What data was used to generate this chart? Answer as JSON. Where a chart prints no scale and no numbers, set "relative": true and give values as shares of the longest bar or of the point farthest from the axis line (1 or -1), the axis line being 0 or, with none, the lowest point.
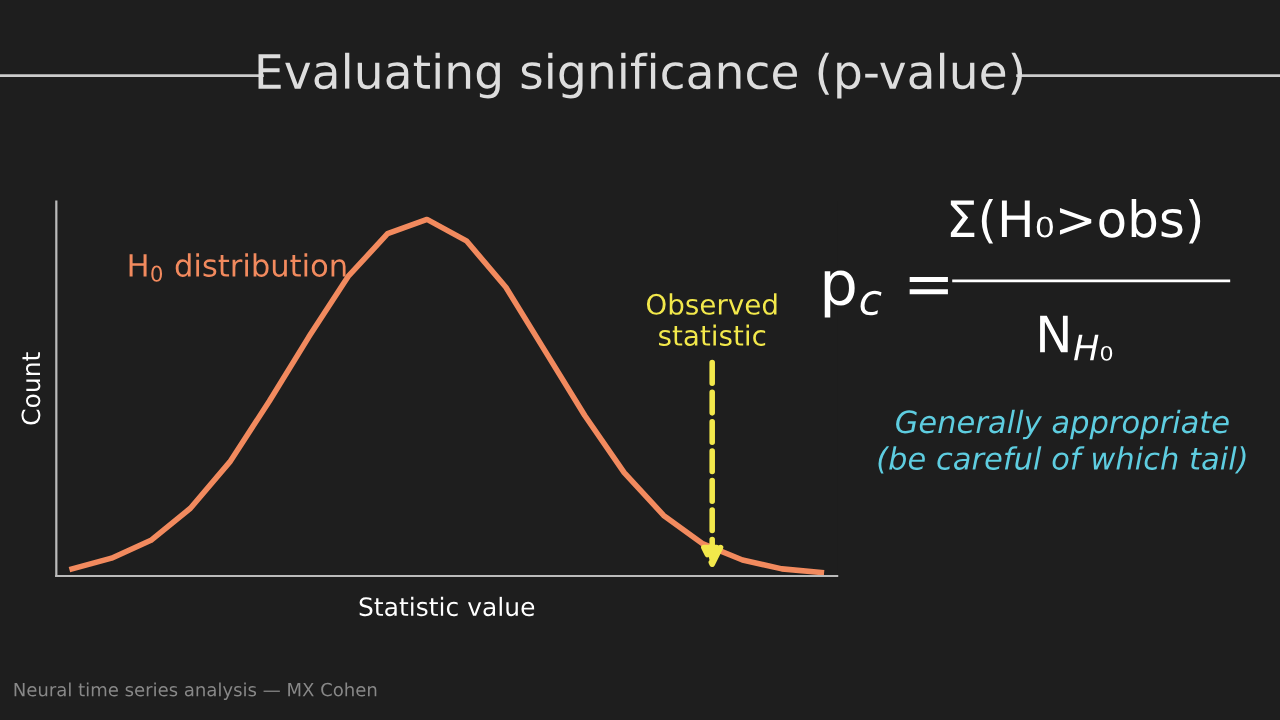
{
  "chart_data": {
    "type": "line",
    "title": "Evaluating significance (p-value)",
    "xlabel": "Statistic value",
    "ylabel": "Count",
    "relative": true,
    "categories": [
      null,
      null,
      null,
      null,
      null,
      null,
      null,
      null,
      null,
      null,
      null,
      null,
      null,
      null,
      null,
      null,
      null,
      null,
      null,
      null
    ],
    "series": [
      {
        "name": "H$_{0}$ distribution",
        "color": "#f28a5e",
        "values": [
          0.02,
          0.05,
          0.1,
          0.19,
          0.32,
          0.49,
          0.67,
          0.84,
          0.96,
          1,
          0.94,
          0.81,
          0.63,
          0.45,
          0.29,
          0.17,
          0.09,
          0.045,
          0.02,
          0.01
        ]
      }
    ],
    "annotations": [
      "Observed\nstatistic",
      "p$_{c}$ =",
      "Σ(H₀>obs)",
      "N$_{H₀}$",
      "Generally appropriate\n(be careful of which tail)",
      "Neural time series analysis — MX Cohen"
    ],
    "grid": false,
    "legend": false,
    "marker": "none",
    "line_style": "solid"
  }
}
